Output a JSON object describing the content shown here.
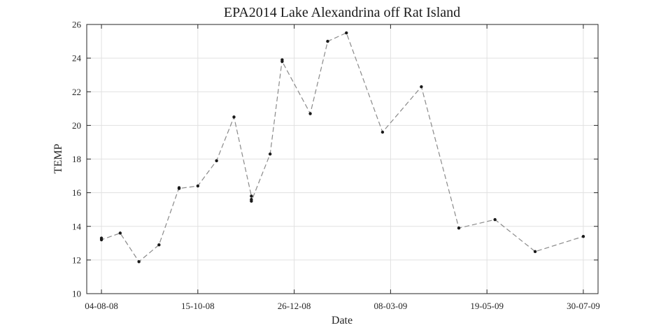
{
  "chart_data": {
    "type": "line",
    "title": "EPA2014 Lake Alexandrina off Rat Island",
    "xlabel": "Date",
    "ylabel": "TEMP",
    "xlim": [
      "2008-07-24",
      "2009-08-10"
    ],
    "ylim": [
      10,
      26
    ],
    "x_ticks": [
      "04-08-08",
      "15-10-08",
      "26-12-08",
      "08-03-09",
      "19-05-09",
      "30-07-09"
    ],
    "x_tick_dates": [
      "2008-08-04",
      "2008-10-15",
      "2008-12-26",
      "2009-03-08",
      "2009-05-19",
      "2009-07-30"
    ],
    "y_ticks": [
      10,
      12,
      14,
      16,
      18,
      20,
      22,
      24,
      26
    ],
    "grid": true,
    "marker_color": "#1a1a1a",
    "line_color": "#8a8a8a",
    "line_style": "dashed",
    "series": [
      {
        "points": [
          {
            "x": "2008-08-04",
            "y": 13.3
          },
          {
            "x": "2008-08-04",
            "y": 13.2
          },
          {
            "x": "2008-08-18",
            "y": 13.6
          },
          {
            "x": "2008-09-01",
            "y": 11.9
          },
          {
            "x": "2008-09-16",
            "y": 12.9
          },
          {
            "x": "2008-10-01",
            "y": 16.3
          },
          {
            "x": "2008-10-01",
            "y": 16.25
          },
          {
            "x": "2008-10-15",
            "y": 16.4
          },
          {
            "x": "2008-10-29",
            "y": 17.9
          },
          {
            "x": "2008-11-11",
            "y": 20.5
          },
          {
            "x": "2008-11-24",
            "y": 15.8
          },
          {
            "x": "2008-11-24",
            "y": 15.6
          },
          {
            "x": "2008-11-24",
            "y": 15.5
          },
          {
            "x": "2008-12-08",
            "y": 18.3
          },
          {
            "x": "2008-12-17",
            "y": 23.9
          },
          {
            "x": "2008-12-17",
            "y": 23.8
          },
          {
            "x": "2009-01-07",
            "y": 20.7
          },
          {
            "x": "2009-01-20",
            "y": 25.0
          },
          {
            "x": "2009-02-03",
            "y": 25.5
          },
          {
            "x": "2009-03-02",
            "y": 19.6
          },
          {
            "x": "2009-03-31",
            "y": 22.3
          },
          {
            "x": "2009-04-28",
            "y": 13.9
          },
          {
            "x": "2009-05-25",
            "y": 14.4
          },
          {
            "x": "2009-06-24",
            "y": 12.5
          },
          {
            "x": "2009-07-30",
            "y": 13.4
          }
        ]
      }
    ]
  }
}
